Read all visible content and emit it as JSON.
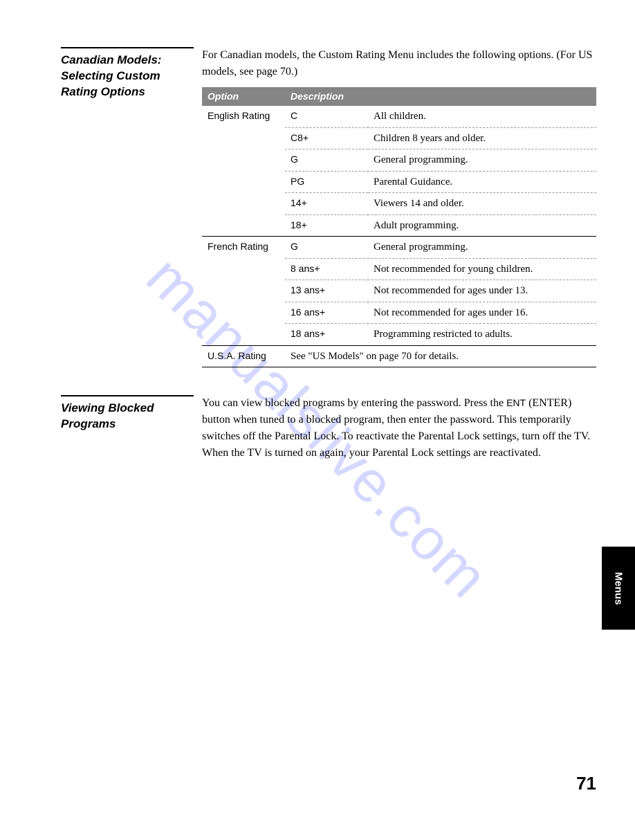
{
  "watermark": "manualslive.com",
  "page_number": "71",
  "side_tab": "Menus",
  "section1": {
    "heading": "Canadian Models: Selecting Custom Rating Options",
    "intro": "For Canadian models, the Custom Rating Menu includes the following options. (For US models, see page 70.)",
    "table": {
      "headers": {
        "option": "Option",
        "description": "Description"
      },
      "groups": [
        {
          "option": "English Rating",
          "rows": [
            {
              "code": "C",
              "desc": "All children."
            },
            {
              "code": "C8+",
              "desc": "Children 8 years and older."
            },
            {
              "code": "G",
              "desc": "General programming."
            },
            {
              "code": "PG",
              "desc": "Parental Guidance."
            },
            {
              "code": "14+",
              "desc": "Viewers 14 and older."
            },
            {
              "code": "18+",
              "desc": "Adult programming."
            }
          ]
        },
        {
          "option": "French Rating",
          "rows": [
            {
              "code": "G",
              "desc": "General programming."
            },
            {
              "code": "8 ans+",
              "desc": "Not recommended for young children."
            },
            {
              "code": "13 ans+",
              "desc": "Not recommended for ages under 13."
            },
            {
              "code": "16 ans+",
              "desc": "Not recommended for ages under 16."
            },
            {
              "code": "18 ans+",
              "desc": "Programming restricted to adults."
            }
          ]
        },
        {
          "option": "U.S.A. Rating",
          "full_desc": "See \"US Models\" on page 70 for details."
        }
      ]
    }
  },
  "section2": {
    "heading": "Viewing Blocked Programs",
    "body_pre": "You can view blocked programs by entering the password. Press the ",
    "body_ent": "ENT",
    "body_post": " (ENTER) button when tuned to a blocked program, then enter the password. This temporarily switches off the Parental Lock. To reactivate the Parental Lock settings, turn off the TV. When the TV is turned on again, your Parental Lock settings are reactivated."
  },
  "colors": {
    "header_bg": "#858585",
    "header_fg": "#ffffff",
    "text": "#000000",
    "watermark": "rgba(100,110,255,0.28)"
  }
}
